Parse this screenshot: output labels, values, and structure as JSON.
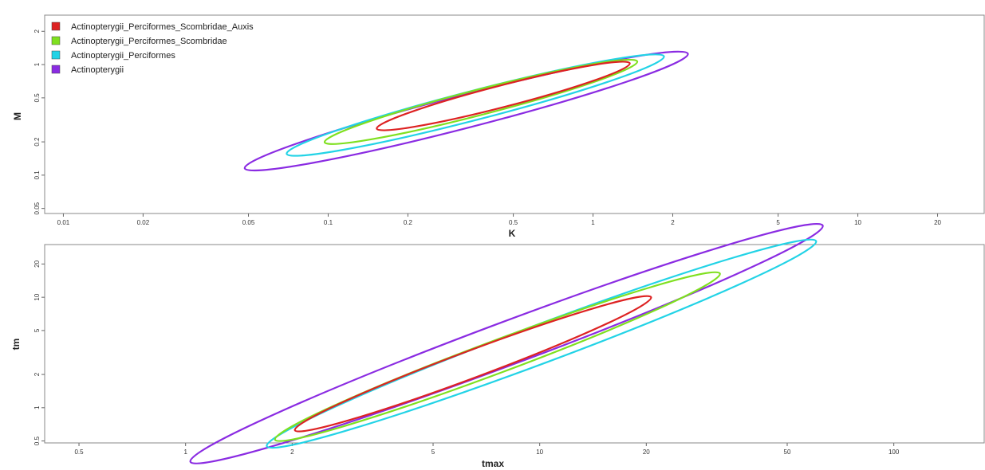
{
  "chart_data": [
    {
      "type": "line",
      "xlabel": "K",
      "ylabel": "M",
      "xscale": "log",
      "yscale": "log",
      "xlim": [
        0.0085,
        30
      ],
      "ylim": [
        0.045,
        2.8
      ],
      "xticks": [
        0.01,
        0.02,
        0.05,
        0.1,
        0.2,
        0.5,
        1,
        2,
        5,
        10,
        20
      ],
      "xtick_labels": [
        "0.01",
        "0.02",
        "0.05",
        "0.1",
        "0.2",
        "0.5",
        "1",
        "2",
        "5",
        "10",
        "20"
      ],
      "yticks": [
        0.05,
        0.1,
        0.2,
        0.5,
        1,
        2
      ],
      "ytick_labels": [
        "0.05",
        "0.1",
        "0.2",
        "0.5",
        "1",
        "2"
      ],
      "grid": false,
      "legend_position": "top-left",
      "series": [
        {
          "name": "Actinopterygii",
          "color": "#8a2be2",
          "center": [
            0.36,
            0.38
          ],
          "ellipse_x_range": [
            0.047,
            2.35
          ]
        },
        {
          "name": "Actinopterygii_Perciformes",
          "color": "#22d3e6",
          "center": [
            0.38,
            0.43
          ],
          "ellipse_x_range": [
            0.068,
            1.9
          ]
        },
        {
          "name": "Actinopterygii_Perciformes_Scombridae",
          "color": "#7fe01f",
          "center": [
            0.38,
            0.46
          ],
          "ellipse_x_range": [
            0.095,
            1.5
          ]
        },
        {
          "name": "Actinopterygii_Perciformes_Scombridae_Auxis",
          "color": "#dd2222",
          "center": [
            0.43,
            0.52
          ],
          "ellipse_x_range": [
            0.15,
            1.4
          ]
        }
      ],
      "legend_order": [
        "Actinopterygii_Perciformes_Scombridae_Auxis",
        "Actinopterygii_Perciformes_Scombridae",
        "Actinopterygii_Perciformes",
        "Actinopterygii"
      ]
    },
    {
      "type": "line",
      "xlabel": "tmax",
      "ylabel": "tm",
      "xscale": "log",
      "yscale": "log",
      "xlim": [
        0.4,
        180
      ],
      "ylim": [
        0.48,
        30
      ],
      "xticks": [
        0.5,
        1,
        2,
        5,
        10,
        20,
        50,
        100
      ],
      "xtick_labels": [
        "0.5",
        "1",
        "2",
        "5",
        "10",
        "20",
        "50",
        "100"
      ],
      "yticks": [
        0.5,
        1,
        2,
        5,
        10,
        20
      ],
      "ytick_labels": [
        "0.5",
        "1",
        "2",
        "5",
        "10",
        "20"
      ],
      "grid": false,
      "series": [
        {
          "name": "Actinopterygii",
          "color": "#8a2be2",
          "center": [
            8.0,
            3.8
          ],
          "ellipse_x_range": [
            1.0,
            65
          ]
        },
        {
          "name": "Actinopterygii_Perciformes",
          "color": "#22d3e6",
          "center": [
            10.5,
            3.8
          ],
          "ellipse_x_range": [
            1.65,
            62
          ]
        },
        {
          "name": "Actinopterygii_Perciformes_Scombridae",
          "color": "#7fe01f",
          "center": [
            7.0,
            2.9
          ],
          "ellipse_x_range": [
            1.75,
            33
          ]
        },
        {
          "name": "Actinopterygii_Perciformes_Scombridae_Auxis",
          "color": "#dd2222",
          "center": [
            6.5,
            2.5
          ],
          "ellipse_x_range": [
            2.0,
            21
          ]
        }
      ]
    }
  ]
}
